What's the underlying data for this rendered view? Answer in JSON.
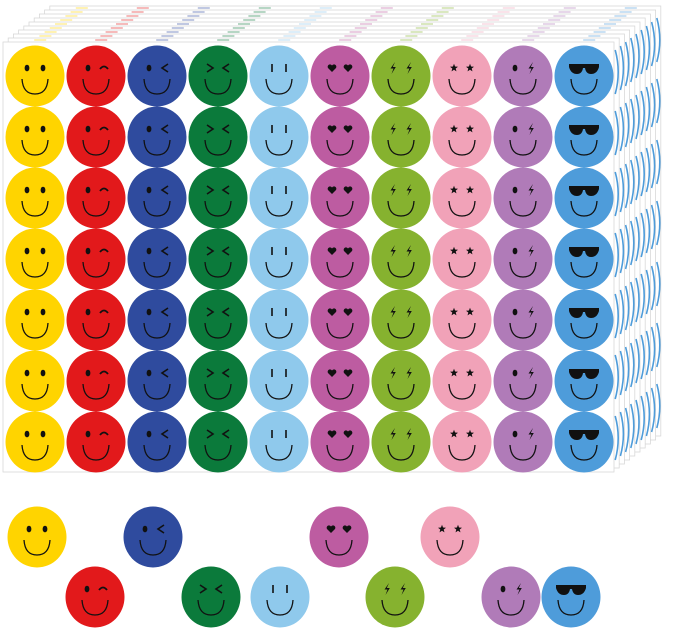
{
  "sheet": {
    "rows": 7,
    "stacked_sheets": 10,
    "background": "#ffffff",
    "edge": "#d8d8d8"
  },
  "sticker_types": [
    {
      "face": "dot-eyes",
      "color": "#FFD400"
    },
    {
      "face": "wink",
      "color": "#E2191B"
    },
    {
      "face": "dot-and-chevron",
      "color": "#2F4B9E"
    },
    {
      "face": "squint",
      "color": "#0B7A3B"
    },
    {
      "face": "line-eyes",
      "color": "#8FC9EC"
    },
    {
      "face": "heart-eyes",
      "color": "#BD5CA1"
    },
    {
      "face": "lightning-eyes",
      "color": "#86B22F"
    },
    {
      "face": "star-eyes",
      "color": "#F1A2B8"
    },
    {
      "face": "dot-and-lightning",
      "color": "#B07BB8"
    },
    {
      "face": "sunglasses",
      "color": "#4E9CDA"
    }
  ],
  "loose_stickers": [
    0,
    2,
    5,
    7,
    1,
    3,
    4,
    6,
    8,
    9
  ],
  "face_ink": "#111111"
}
